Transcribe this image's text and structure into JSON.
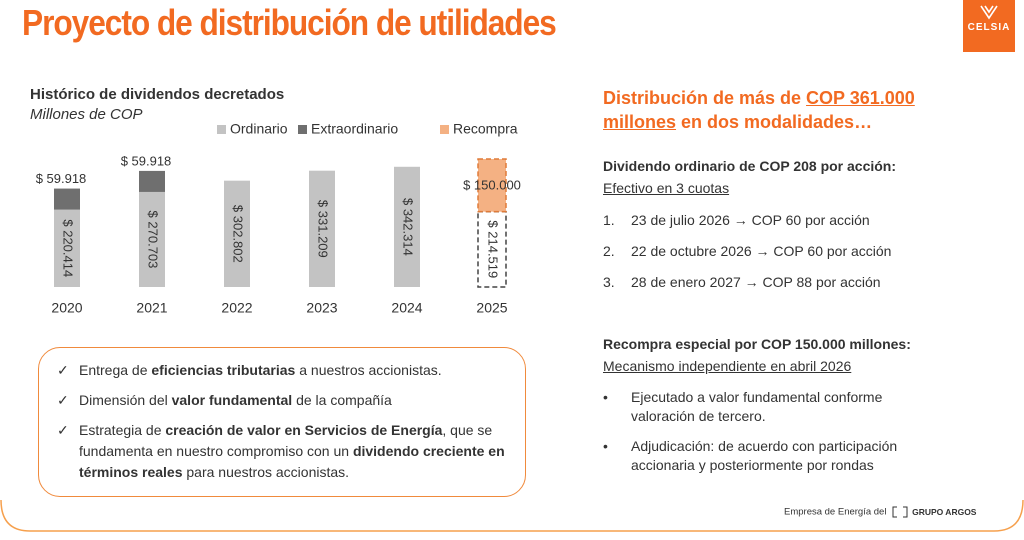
{
  "header": {
    "title": "Proyecto de distribución de utilidades",
    "logo": "CELSIA"
  },
  "chart_data": {
    "type": "stacked-bar",
    "title": "Histórico de dividendos decretados",
    "subtitle": "Millones de COP",
    "categories": [
      "2020",
      "2021",
      "2022",
      "2023",
      "2024",
      "2025"
    ],
    "series": [
      {
        "name": "Ordinario",
        "color": "#c3c3c3",
        "values": [
          220414,
          270703,
          302802,
          331209,
          342314,
          214519
        ],
        "value_labels": [
          "$ 220.414",
          "$ 270.703",
          "$ 302.802",
          "$ 331.209",
          "$ 342.314",
          "$ 214.519"
        ]
      },
      {
        "name": "Extraordinario",
        "color": "#6f6f6f",
        "values": [
          59918,
          59918,
          null,
          null,
          null,
          null
        ],
        "value_labels": [
          "$ 59.918",
          "$ 59.918",
          null,
          null,
          null,
          null
        ]
      },
      {
        "name": "Recompra",
        "color": "#f4b183",
        "values": [
          null,
          null,
          null,
          null,
          null,
          150000
        ],
        "value_labels": [
          null,
          null,
          null,
          null,
          null,
          "$ 150.000"
        ]
      }
    ]
  },
  "highlights": [
    [
      {
        "text": "Entrega de "
      },
      {
        "text": "eficiencias tributarias",
        "bold": true
      },
      {
        "text": " a nuestros accionistas."
      }
    ],
    [
      {
        "text": "Dimensión del "
      },
      {
        "text": "valor fundamental",
        "bold": true
      },
      {
        "text": " de la compañía"
      }
    ],
    [
      {
        "text": "Estrategia de "
      },
      {
        "text": "creación de valor en Servicios de Energía",
        "bold": true
      },
      {
        "text": ", que se fundamenta en nuestro compromiso con un "
      },
      {
        "text": "dividendo creciente en términos reales",
        "bold": true
      },
      {
        "text": " para nuestros accionistas."
      }
    ]
  ],
  "summary": {
    "heading": [
      {
        "text": "Distribución de más de "
      },
      {
        "text": "COP 361.000 millones",
        "underline": true
      },
      {
        "text": " en dos modalidades…"
      }
    ],
    "sections": [
      {
        "title": "Dividendo ordinario de COP 208 por acción:",
        "subtitle": "Efectivo en 3 cuotas",
        "items": [
          {
            "marker": "1.",
            "text": "23 de julio 2026 → COP 60 por acción"
          },
          {
            "marker": "2.",
            "text": "22 de octubre 2026 → COP 60 por acción"
          },
          {
            "marker": "3.",
            "text": "28 de enero 2027 → COP 88 por acción"
          }
        ]
      },
      {
        "title": "Recompra especial por COP 150.000 millones:",
        "subtitle": "Mecanismo independiente en abril 2026",
        "items": [
          {
            "text": "Ejecutado a valor fundamental conforme valoración de tercero."
          },
          {
            "text": "Adjudicación: de acuerdo con participación accionaria y posteriormente por rondas"
          }
        ]
      }
    ]
  },
  "footer": {
    "text": "Empresa de Energía del",
    "brand": "GRUPO ARGOS"
  }
}
